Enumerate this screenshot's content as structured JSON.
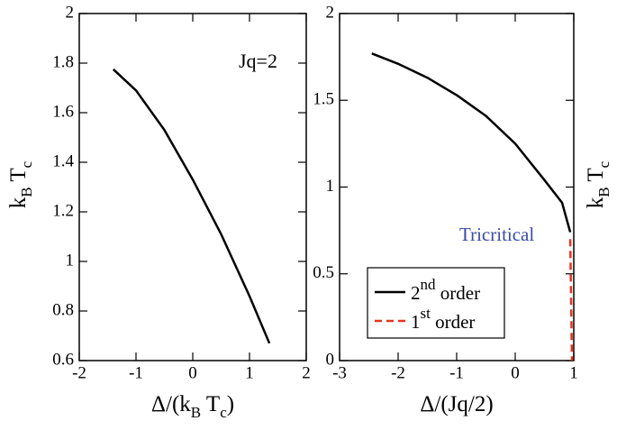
{
  "chart_data": [
    {
      "type": "line",
      "xlabel": [
        "Δ/(k",
        "B",
        " T",
        "c",
        ")"
      ],
      "ylabel": [
        "k",
        "B",
        " T",
        "c"
      ],
      "annotation": "Jq=2",
      "xlim": [
        -2,
        2
      ],
      "xticks": [
        -2,
        -1,
        0,
        1,
        2
      ],
      "ylim": [
        0.6,
        2
      ],
      "yticks": [
        0.6,
        0.8,
        1,
        1.2,
        1.4,
        1.6,
        1.8,
        2
      ],
      "series": [
        {
          "color": "#000000",
          "dash": false,
          "x": [
            -1.4,
            -1,
            -0.5,
            0,
            0.5,
            1,
            1.35
          ],
          "values": [
            1.775,
            1.69,
            1.53,
            1.33,
            1.11,
            0.86,
            0.67
          ]
        }
      ]
    },
    {
      "type": "line",
      "xlabel": [
        "Δ/(Jq/2)"
      ],
      "ylabel": [
        "k",
        "B",
        " T",
        "c"
      ],
      "annotation": "Tricritical",
      "annotation_color": "#3a4aa8",
      "xlim": [
        -3,
        1
      ],
      "xticks": [
        -3,
        -2,
        -1,
        0,
        1
      ],
      "ylim": [
        0,
        2
      ],
      "yticks": [
        0,
        0.5,
        1,
        1.5,
        2
      ],
      "series": [
        {
          "name": [
            "2",
            "nd",
            " order"
          ],
          "color": "#000000",
          "dash": false,
          "x": [
            -2.45,
            -2,
            -1.5,
            -1,
            -0.5,
            0,
            0.5,
            0.8,
            0.94
          ],
          "values": [
            1.77,
            1.71,
            1.63,
            1.53,
            1.41,
            1.25,
            1.04,
            0.91,
            0.74
          ]
        },
        {
          "name": [
            "1",
            "st",
            " order"
          ],
          "color": "#e8321e",
          "dash": true,
          "x": [
            0.94,
            0.97
          ],
          "values": [
            0.7,
            0
          ]
        }
      ]
    }
  ]
}
